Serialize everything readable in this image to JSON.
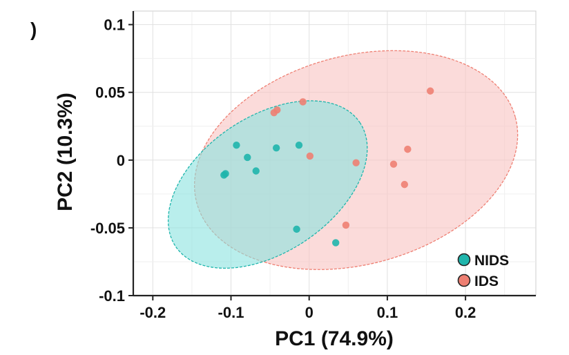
{
  "panel_mark": ")",
  "chart_data": {
    "type": "scatter",
    "title": "",
    "xlabel": "PC1 (74.9%)",
    "ylabel": "PC2 (10.3%)",
    "xlim": [
      -0.225,
      0.29
    ],
    "ylim": [
      -0.1,
      0.11
    ],
    "xticks": [
      -0.2,
      -0.1,
      0,
      0.1,
      0.2
    ],
    "xtick_labels": [
      "-0.2",
      "-0.1",
      "0",
      "0.1",
      "0.2"
    ],
    "yticks": [
      -0.1,
      -0.05,
      0,
      0.05,
      0.1
    ],
    "ytick_labels": [
      "-0.1",
      "-0.05",
      "0",
      "0.05",
      "0.1"
    ],
    "grid": true,
    "legend_position": "bottom-right",
    "series": [
      {
        "name": "NIDS",
        "color": "#1fb5ac",
        "fill": "#8be3df",
        "points": [
          {
            "x": -0.093,
            "y": 0.011
          },
          {
            "x": -0.079,
            "y": 0.002
          },
          {
            "x": -0.068,
            "y": -0.008
          },
          {
            "x": -0.107,
            "y": -0.01
          },
          {
            "x": -0.109,
            "y": -0.011
          },
          {
            "x": -0.042,
            "y": 0.009
          },
          {
            "x": -0.013,
            "y": 0.011
          },
          {
            "x": -0.016,
            "y": -0.051
          },
          {
            "x": 0.034,
            "y": -0.061
          }
        ],
        "ellipse": {
          "cx": -0.053,
          "cy": -0.018,
          "rx": 0.142,
          "ry": 0.05,
          "angle_deg": -34
        }
      },
      {
        "name": "IDS",
        "color": "#ee7f72",
        "fill": "#f9c3c1",
        "points": [
          {
            "x": -0.045,
            "y": 0.035
          },
          {
            "x": -0.041,
            "y": 0.037
          },
          {
            "x": -0.008,
            "y": 0.043
          },
          {
            "x": 0.001,
            "y": 0.003
          },
          {
            "x": 0.06,
            "y": -0.002
          },
          {
            "x": 0.108,
            "y": -0.003
          },
          {
            "x": 0.126,
            "y": 0.008
          },
          {
            "x": 0.122,
            "y": -0.018
          },
          {
            "x": 0.155,
            "y": 0.051
          },
          {
            "x": 0.047,
            "y": -0.048
          }
        ],
        "ellipse": {
          "cx": 0.06,
          "cy": 0.0,
          "rx": 0.211,
          "ry": 0.077,
          "angle_deg": -15
        }
      }
    ]
  }
}
